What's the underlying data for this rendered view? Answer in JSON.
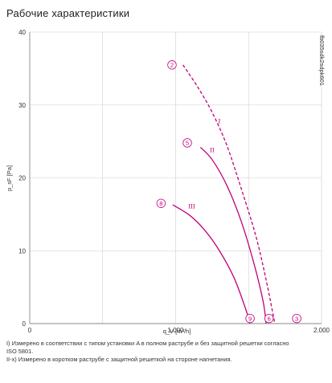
{
  "page": {
    "title": "Рабочие характеристики",
    "footnotes": [
      "I) Измерено в соответствии с типом установки A в полном раструбе и без защитной решетки согласно",
      "ISO 5801.",
      "II-x) Измерено в коротком раструбе с защитной решеткой на стороне нагнетания."
    ]
  },
  "colors": {
    "curve": "#c2007a",
    "grid": "#cfcfcf",
    "axis": "#888888"
  },
  "chart_data": {
    "type": "line",
    "title": "Рабочие характеристики",
    "xlabel": "q_V [m³/h]",
    "ylabel": "p_sF [Pa]",
    "xlim": [
      0,
      2000
    ],
    "ylim": [
      0,
      40
    ],
    "x_ticks": [
      0,
      1000,
      2000
    ],
    "x_tick_labels": [
      "0",
      "1.000",
      "2.000"
    ],
    "y_ticks": [
      0,
      10,
      20,
      30,
      40
    ],
    "y_tick_labels": [
      "0",
      "10",
      "20",
      "30",
      "40"
    ],
    "grid": {
      "x_step": 500,
      "y_step": 10
    },
    "vertical_code": "fb035sdk2sdpk601",
    "series": [
      {
        "name": "I",
        "style": "dashed",
        "points": [
          [
            1050,
            35.5
          ],
          [
            1150,
            32.5
          ],
          [
            1250,
            29
          ],
          [
            1350,
            24.5
          ],
          [
            1450,
            18.5
          ],
          [
            1550,
            12
          ],
          [
            1620,
            6
          ],
          [
            1680,
            0
          ]
        ],
        "label_at": [
          1300,
          27.5
        ],
        "start_marker": {
          "label": "2",
          "at": [
            975,
            35.5
          ]
        },
        "end_marker": {
          "label": "3",
          "at": [
            1830,
            0.7
          ]
        }
      },
      {
        "name": "II",
        "style": "solid",
        "points": [
          [
            1170,
            24.2
          ],
          [
            1250,
            22.5
          ],
          [
            1350,
            19
          ],
          [
            1450,
            14
          ],
          [
            1540,
            8
          ],
          [
            1600,
            3
          ],
          [
            1620,
            0
          ]
        ],
        "label_at": [
          1250,
          23.5
        ],
        "start_marker": {
          "label": "5",
          "at": [
            1080,
            24.8
          ]
        },
        "end_marker": {
          "label": "6",
          "at": [
            1640,
            0.7
          ]
        }
      },
      {
        "name": "III",
        "style": "solid",
        "points": [
          [
            980,
            16.3
          ],
          [
            1100,
            14.8
          ],
          [
            1200,
            12.8
          ],
          [
            1300,
            10
          ],
          [
            1400,
            6.3
          ],
          [
            1480,
            2
          ],
          [
            1510,
            0
          ]
        ],
        "label_at": [
          1110,
          15.8
        ],
        "start_marker": {
          "label": "8",
          "at": [
            900,
            16.5
          ]
        },
        "end_marker": {
          "label": "9",
          "at": [
            1510,
            0.7
          ]
        }
      }
    ]
  }
}
